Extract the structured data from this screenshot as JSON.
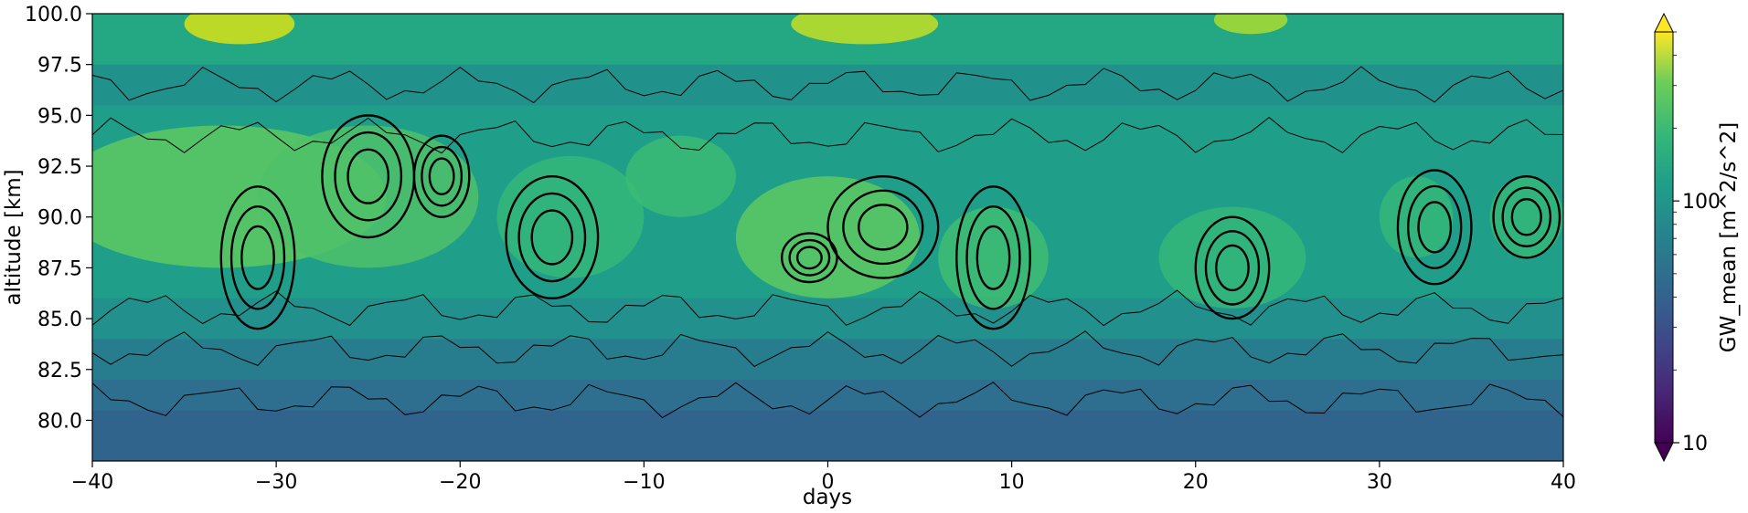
{
  "chart_data": {
    "type": "heatmap",
    "subtype": "filled-contour-with-line-contours",
    "title": "",
    "xlabel": "days",
    "ylabel": "altitude [km]",
    "xlim": [
      -40,
      40
    ],
    "ylim": [
      78.0,
      100.0
    ],
    "x_ticks": [
      -40,
      -30,
      -20,
      -10,
      0,
      10,
      20,
      30,
      40
    ],
    "x_tick_labels": [
      "−40",
      "−30",
      "−20",
      "−10",
      "0",
      "10",
      "20",
      "30",
      "40"
    ],
    "y_ticks": [
      80.0,
      82.5,
      85.0,
      87.5,
      90.0,
      92.5,
      95.0,
      97.5,
      100.0
    ],
    "y_tick_labels": [
      "80.0",
      "82.5",
      "85.0",
      "87.5",
      "90.0",
      "92.5",
      "95.0",
      "97.5",
      "100.0"
    ],
    "colorbar": {
      "label": "GW_mean [m^2/s^2]",
      "scale": "log",
      "colormap": "viridis",
      "extend": "both",
      "ticks": [
        10,
        100
      ],
      "tick_labels": [
        "10",
        "100"
      ],
      "range": [
        10,
        500
      ]
    },
    "contour_lines": "black",
    "grid": false
  }
}
